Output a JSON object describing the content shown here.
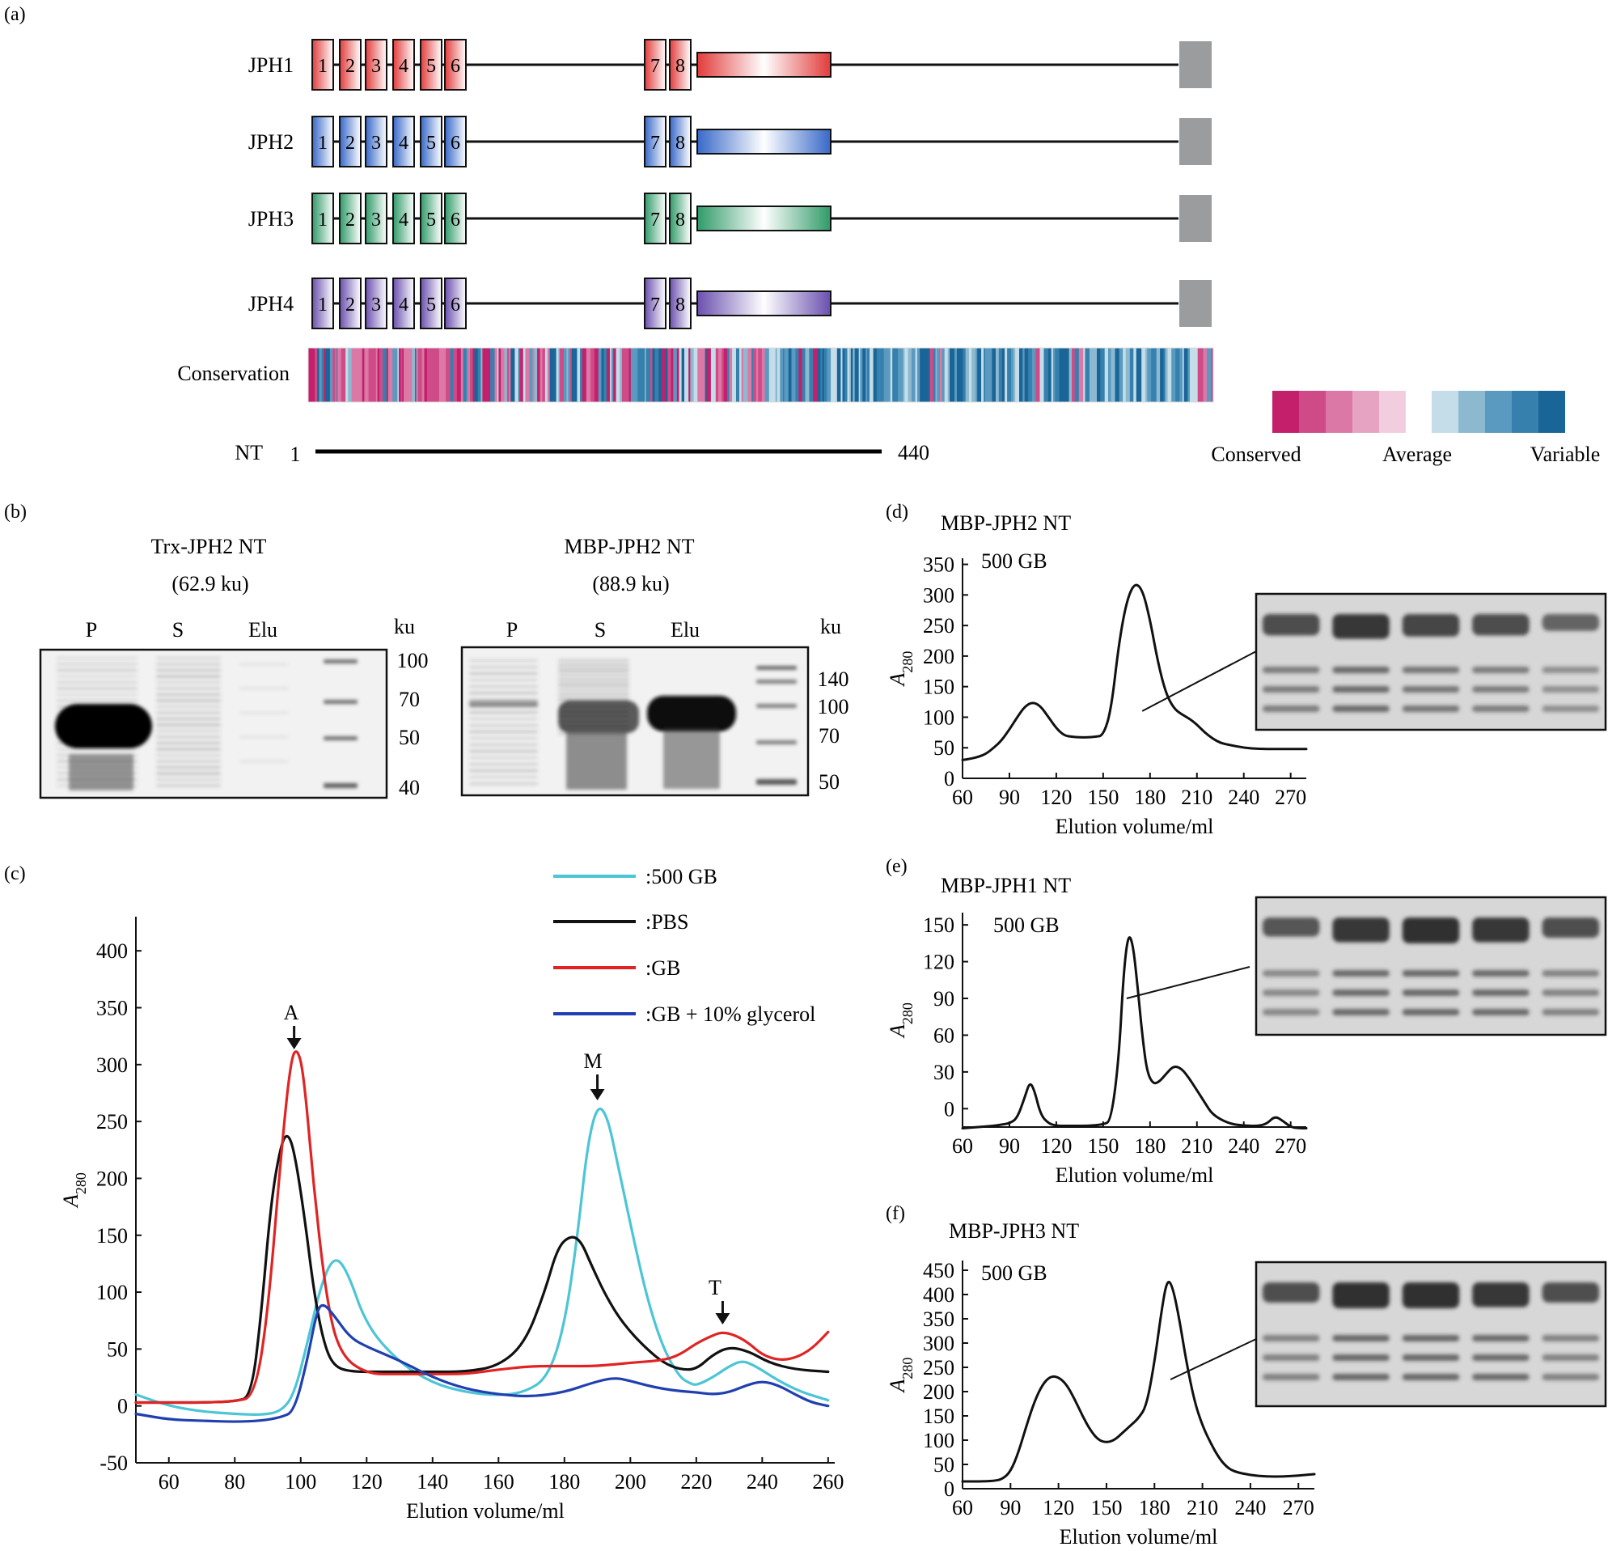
{
  "panel_labels": [
    "(a)",
    "(b)",
    "(c)",
    "(d)",
    "(e)",
    "(f)"
  ],
  "panel_a": {
    "proteins": [
      {
        "label": "JPH1",
        "color": "#f07a7a",
        "fill": "#f8b2b2",
        "dark": "#e23b3b"
      },
      {
        "label": "JPH2",
        "color": "#6f93d6",
        "fill": "#b9cdee",
        "dark": "#3768c8"
      },
      {
        "label": "JPH3",
        "color": "#40a878",
        "fill": "#a8dcc0",
        "dark": "#2f9a68"
      },
      {
        "label": "JPH4",
        "color": "#8a6fc0",
        "fill": "#cabde6",
        "dark": "#6a4fae"
      }
    ],
    "motif_numbers": [
      "1",
      "2",
      "3",
      "4",
      "5",
      "6",
      "7",
      "8"
    ],
    "conservation_label": "Conservation",
    "nt_label": "NT",
    "nt_start": "1",
    "nt_end": "440",
    "legend": {
      "conserved": "Conserved",
      "average": "Average",
      "variable": "Variable",
      "conserved_colors": [
        "#c31f6b",
        "#cf4b88",
        "#dc78a5",
        "#e6a3c2",
        "#f2cde0"
      ],
      "variable_colors": [
        "#c4dde8",
        "#8db9d0",
        "#5a9ac0",
        "#3580ad",
        "#1a6598"
      ]
    }
  },
  "panel_b": {
    "gels": [
      {
        "title": "Trx-JPH2 NT",
        "mass": "(62.9 ku)",
        "lanes": [
          "P",
          "S",
          "Elu"
        ],
        "unit": "ku",
        "markers": [
          "100",
          "70",
          "50",
          "40"
        ]
      },
      {
        "title": "MBP-JPH2 NT",
        "mass": "(88.9 ku)",
        "lanes": [
          "P",
          "S",
          "Elu"
        ],
        "unit": "ku",
        "markers": [
          "140",
          "100",
          "70",
          "50"
        ]
      }
    ]
  },
  "panel_c": {
    "legend": [
      ":500 GB",
      ":PBS",
      ":GB",
      ":GB + 10% glycerol"
    ],
    "annotations": [
      "A",
      "M",
      "T"
    ]
  },
  "panel_d": {
    "title": "MBP-JPH2 NT",
    "inset": "500 GB"
  },
  "panel_e": {
    "title": "MBP-JPH1 NT",
    "inset": "500 GB"
  },
  "panel_f": {
    "title": "MBP-JPH3 NT",
    "inset": "500 GB"
  },
  "chart_data": [
    {
      "type": "line",
      "panel": "(c)",
      "xlabel": "Elution volume/ml",
      "ylabel": "A280",
      "xlim": [
        50,
        262
      ],
      "ylim": [
        -50,
        430
      ],
      "xticks": [
        60,
        80,
        100,
        120,
        140,
        160,
        180,
        200,
        220,
        240,
        260
      ],
      "yticks": [
        -50,
        0,
        50,
        100,
        150,
        200,
        250,
        300,
        350,
        400
      ],
      "series": [
        {
          "name": "500 GB",
          "color": "#4cc5d6",
          "x": [
            50,
            60,
            70,
            80,
            88,
            94,
            98,
            102,
            106,
            110,
            114,
            120,
            130,
            140,
            150,
            160,
            168,
            175,
            180,
            184,
            187,
            190,
            193,
            196,
            200,
            205,
            210,
            215,
            218,
            220,
            225,
            230,
            234,
            238,
            245,
            252,
            260
          ],
          "y": [
            10,
            0,
            -5,
            -7,
            -8,
            -5,
            10,
            55,
            105,
            132,
            120,
            70,
            38,
            20,
            12,
            9,
            12,
            25,
            70,
            150,
            230,
            265,
            255,
            215,
            160,
            95,
            50,
            25,
            20,
            18,
            25,
            35,
            40,
            35,
            22,
            12,
            5
          ]
        },
        {
          "name": "PBS",
          "color": "#111111",
          "x": [
            50,
            60,
            70,
            80,
            85,
            88,
            91,
            94,
            96,
            98,
            101,
            104,
            107,
            110,
            115,
            125,
            140,
            150,
            160,
            168,
            174,
            178,
            182,
            185,
            188,
            192,
            196,
            200,
            205,
            210,
            215,
            220,
            225,
            230,
            236,
            242,
            250,
            260
          ],
          "y": [
            3,
            3,
            3,
            4,
            8,
            80,
            180,
            230,
            240,
            225,
            170,
            100,
            55,
            35,
            30,
            30,
            30,
            30,
            35,
            55,
            100,
            140,
            150,
            145,
            125,
            100,
            80,
            65,
            50,
            38,
            32,
            32,
            45,
            52,
            48,
            38,
            32,
            30
          ]
        },
        {
          "name": "GB",
          "color": "#e02424",
          "x": [
            50,
            60,
            70,
            80,
            86,
            90,
            94,
            97,
            99,
            101,
            104,
            108,
            112,
            120,
            130,
            140,
            150,
            160,
            170,
            180,
            190,
            200,
            210,
            215,
            220,
            225,
            228,
            232,
            236,
            240,
            245,
            250,
            255,
            260
          ],
          "y": [
            3,
            3,
            3,
            4,
            8,
            80,
            220,
            305,
            315,
            290,
            190,
            90,
            45,
            28,
            28,
            28,
            28,
            32,
            35,
            35,
            35,
            38,
            40,
            45,
            55,
            62,
            65,
            62,
            55,
            45,
            40,
            42,
            50,
            65
          ]
        },
        {
          "name": "GB + 10% glycerol",
          "color": "#2040b0",
          "x": [
            50,
            60,
            70,
            80,
            88,
            94,
            98,
            102,
            105,
            107,
            110,
            115,
            120,
            130,
            140,
            150,
            160,
            170,
            180,
            188,
            195,
            200,
            205,
            210,
            215,
            220,
            225,
            230,
            235,
            240,
            245,
            250,
            255,
            260
          ],
          "y": [
            -7,
            -12,
            -13,
            -14,
            -13,
            -10,
            -5,
            40,
            85,
            90,
            80,
            60,
            52,
            40,
            25,
            15,
            10,
            8,
            12,
            20,
            25,
            22,
            18,
            15,
            13,
            12,
            10,
            12,
            18,
            22,
            18,
            10,
            3,
            0
          ]
        }
      ]
    },
    {
      "type": "line",
      "panel": "(d)",
      "title": "MBP-JPH2 NT",
      "xlabel": "Elution volume/ml",
      "ylabel": "A280",
      "xlim": [
        60,
        280
      ],
      "ylim": [
        0,
        360
      ],
      "xticks": [
        60,
        90,
        120,
        150,
        180,
        210,
        240,
        270
      ],
      "yticks": [
        0,
        50,
        100,
        150,
        200,
        250,
        300,
        350
      ],
      "series": [
        {
          "name": "MBP-JPH2 NT",
          "x": [
            60,
            65,
            70,
            75,
            80,
            85,
            90,
            95,
            100,
            105,
            110,
            115,
            120,
            125,
            130,
            135,
            140,
            145,
            150,
            155,
            160,
            165,
            170,
            175,
            180,
            185,
            190,
            195,
            200,
            205,
            210,
            215,
            220,
            225,
            230,
            240,
            250,
            260,
            270,
            280
          ],
          "y": [
            30,
            32,
            35,
            40,
            50,
            62,
            80,
            100,
            118,
            125,
            118,
            100,
            82,
            70,
            68,
            67,
            67,
            68,
            70,
            110,
            220,
            290,
            320,
            310,
            260,
            190,
            140,
            115,
            105,
            98,
            88,
            75,
            65,
            58,
            55,
            50,
            48,
            48,
            48,
            48
          ]
        }
      ]
    },
    {
      "type": "line",
      "panel": "(e)",
      "title": "MBP-JPH1 NT",
      "xlabel": "Elution volume/ml",
      "ylabel": "A280",
      "xlim": [
        60,
        280
      ],
      "ylim": [
        -15,
        160
      ],
      "xticks": [
        60,
        90,
        120,
        150,
        180,
        210,
        240,
        270
      ],
      "yticks": [
        0,
        30,
        60,
        90,
        120,
        150
      ],
      "series": [
        {
          "name": "MBP-JPH1 NT",
          "x": [
            60,
            70,
            80,
            85,
            90,
            95,
            100,
            103,
            106,
            110,
            115,
            120,
            130,
            140,
            150,
            155,
            160,
            163,
            166,
            169,
            172,
            175,
            178,
            182,
            186,
            190,
            195,
            200,
            205,
            210,
            215,
            220,
            230,
            240,
            250,
            255,
            260,
            265,
            270,
            275,
            280
          ],
          "y": [
            -16,
            -15,
            -14,
            -13,
            -12,
            -8,
            10,
            22,
            15,
            -5,
            -12,
            -14,
            -14,
            -14,
            -13,
            -10,
            40,
            110,
            143,
            135,
            100,
            60,
            30,
            20,
            22,
            28,
            35,
            33,
            25,
            15,
            5,
            -5,
            -12,
            -14,
            -14,
            -12,
            -6,
            -10,
            -15,
            -16,
            -16
          ]
        }
      ]
    },
    {
      "type": "line",
      "panel": "(f)",
      "title": "MBP-JPH3 NT",
      "xlabel": "Elution volume/ml",
      "ylabel": "A280",
      "xlim": [
        60,
        280
      ],
      "ylim": [
        0,
        470
      ],
      "xticks": [
        60,
        90,
        120,
        150,
        180,
        210,
        240,
        270
      ],
      "yticks": [
        0,
        50,
        100,
        150,
        200,
        250,
        300,
        350,
        400,
        450
      ],
      "series": [
        {
          "name": "MBP-JPH3 NT",
          "x": [
            60,
            70,
            80,
            85,
            90,
            95,
            100,
            105,
            110,
            115,
            120,
            125,
            130,
            135,
            140,
            145,
            150,
            155,
            160,
            165,
            170,
            175,
            180,
            185,
            188,
            191,
            195,
            200,
            205,
            210,
            215,
            220,
            225,
            230,
            240,
            250,
            260,
            270,
            280
          ],
          "y": [
            15,
            15,
            16,
            20,
            35,
            75,
            130,
            180,
            215,
            232,
            230,
            215,
            185,
            150,
            120,
            100,
            95,
            100,
            115,
            130,
            145,
            170,
            260,
            380,
            430,
            420,
            360,
            260,
            180,
            130,
            95,
            65,
            45,
            35,
            28,
            25,
            25,
            27,
            30
          ]
        }
      ]
    }
  ]
}
